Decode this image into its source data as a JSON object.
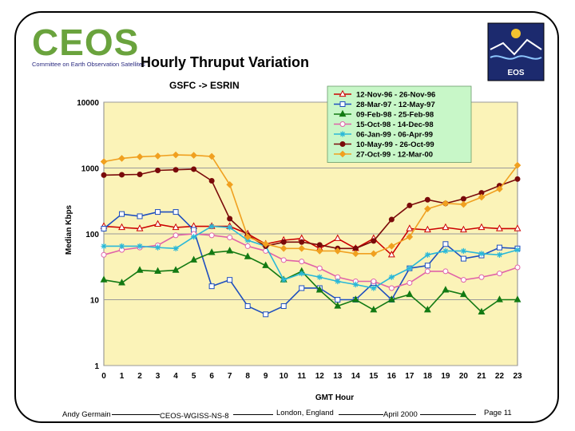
{
  "logo": {
    "left_word": "CEOS",
    "left_subtitle": "Committee on Earth Observation Satellites",
    "right_word": "EOS"
  },
  "slide_title": "Hourly Thruput Variation",
  "footer": {
    "author": "Andy Germain",
    "doc_id": "CEOS-WGISS-NS-8",
    "location": "London, England",
    "date": "April 2000",
    "page": "Page 11"
  },
  "chart_data": {
    "type": "line",
    "title": "GSFC -> ESRIN",
    "xlabel": "GMT Hour",
    "ylabel": "Median Kbps",
    "yscale": "log",
    "ylim": [
      1,
      10000
    ],
    "ytick_labels": [
      "1",
      "10",
      "100",
      "1000",
      "10000"
    ],
    "yticks": [
      1,
      10,
      100,
      1000,
      10000
    ],
    "x": [
      0,
      1,
      2,
      3,
      4,
      5,
      6,
      7,
      8,
      9,
      10,
      11,
      12,
      13,
      14,
      15,
      16,
      17,
      18,
      19,
      20,
      21,
      22,
      23
    ],
    "legend_position": "top-right",
    "series": [
      {
        "name": "12-Nov-96 - 26-Nov-96",
        "color": "#cc0000",
        "marker": "triangle-open",
        "values": [
          130,
          125,
          120,
          140,
          125,
          130,
          130,
          130,
          100,
          70,
          80,
          85,
          60,
          85,
          60,
          85,
          48,
          120,
          115,
          125,
          115,
          125,
          120,
          120
        ]
      },
      {
        "name": "28-Mar-97 - 12-May-97",
        "color": "#1f4fbf",
        "marker": "square-open",
        "values": [
          120,
          200,
          185,
          215,
          215,
          115,
          16,
          20,
          8,
          6,
          8,
          15,
          15,
          10,
          10,
          18,
          10,
          30,
          33,
          70,
          42,
          47,
          62,
          60
        ]
      },
      {
        "name": "09-Feb-98 - 25-Feb-98",
        "color": "#137a13",
        "marker": "triangle-filled",
        "values": [
          20,
          18,
          28,
          27,
          28,
          40,
          52,
          55,
          45,
          33,
          20,
          27,
          14,
          8,
          10,
          7,
          10,
          12,
          7,
          14,
          12,
          6.5,
          10,
          10
        ]
      },
      {
        "name": "15-Oct-98 - 14-Dec-98",
        "color": "#e062a8",
        "marker": "circle-open",
        "values": [
          48,
          57,
          62,
          67,
          95,
          100,
          95,
          88,
          65,
          55,
          40,
          38,
          30,
          22,
          19,
          19,
          15,
          18,
          27,
          27,
          20,
          22,
          25,
          31
        ]
      },
      {
        "name": "06-Jan-99 - 06-Apr-99",
        "color": "#2ab8d8",
        "marker": "star",
        "values": [
          65,
          65,
          65,
          62,
          60,
          90,
          130,
          125,
          80,
          65,
          20,
          25,
          22,
          19,
          17,
          15,
          22,
          30,
          48,
          55,
          55,
          50,
          48,
          57
        ]
      },
      {
        "name": "10-May-99 - 26-Oct-99",
        "color": "#7a0a0a",
        "marker": "circle-filled",
        "values": [
          780,
          790,
          800,
          920,
          940,
          960,
          640,
          170,
          95,
          65,
          75,
          75,
          68,
          60,
          60,
          78,
          165,
          270,
          330,
          290,
          340,
          420,
          540,
          680
        ]
      },
      {
        "name": "27-Oct-99 - 12-Mar-00",
        "color": "#f0a020",
        "marker": "diamond-filled",
        "values": [
          1250,
          1400,
          1480,
          1520,
          1580,
          1560,
          1500,
          560,
          90,
          70,
          60,
          60,
          55,
          55,
          50,
          50,
          65,
          90,
          240,
          290,
          280,
          360,
          480,
          1100
        ]
      }
    ]
  },
  "colors": {
    "plot_background": "#fbf3b8",
    "legend_background": "#c8f7c8",
    "gridline": "#9a9a9a"
  }
}
